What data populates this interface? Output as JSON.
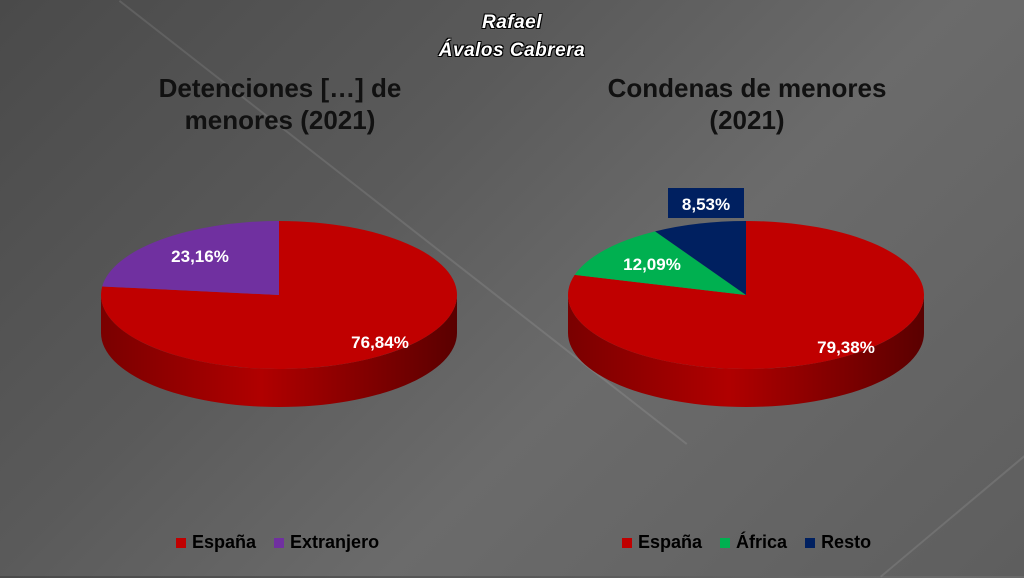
{
  "author": {
    "line1": "Rafael",
    "line2": "Ávalos Cabrera"
  },
  "colors": {
    "espana": "#c00000",
    "extranjero": "#7030a0",
    "africa": "#00b050",
    "resto": "#002060"
  },
  "chart_data": [
    {
      "type": "pie",
      "title_line1": "Detenciones […] de",
      "title_line2": "menores (2021)",
      "categories": [
        "España",
        "Extranjero"
      ],
      "values": [
        76.84,
        23.16
      ],
      "labels": [
        "76,84%",
        "23,16%"
      ],
      "colors": [
        "#c00000",
        "#7030a0"
      ],
      "legend": "bottom"
    },
    {
      "type": "pie",
      "title_line1": "Condenas de menores",
      "title_line2": "(2021)",
      "categories": [
        "España",
        "África",
        "Resto"
      ],
      "values": [
        79.38,
        12.09,
        8.53
      ],
      "labels": [
        "79,38%",
        "12,09%",
        "8,53%"
      ],
      "colors": [
        "#c00000",
        "#00b050",
        "#002060"
      ],
      "legend": "bottom"
    }
  ]
}
